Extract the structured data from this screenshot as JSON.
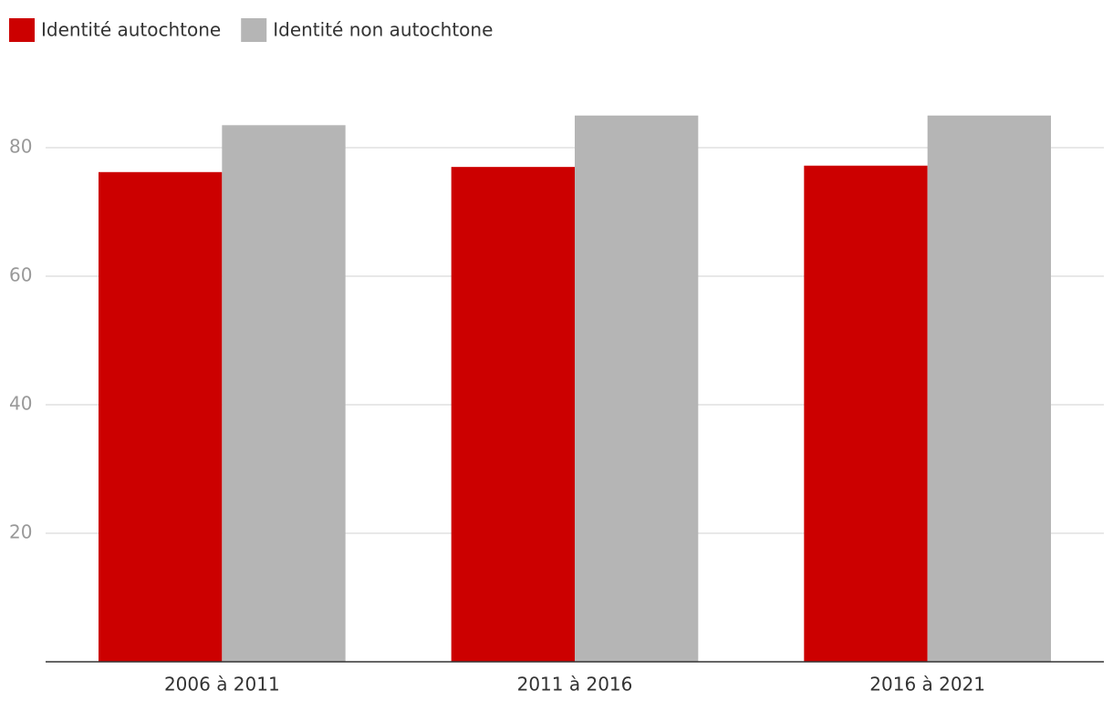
{
  "chart_data": {
    "type": "bar",
    "categories": [
      "2006 à 2011",
      "2011 à 2016",
      "2016 à 2021"
    ],
    "series": [
      {
        "name": "Identité autochtone",
        "color": "#cc0000",
        "values": [
          76.2,
          77.0,
          77.2
        ]
      },
      {
        "name": "Identité non autochtone",
        "color": "#b5b5b5",
        "values": [
          83.5,
          85.0,
          85.0
        ]
      }
    ],
    "ylim": [
      0,
      90
    ],
    "yticks": [
      20,
      40,
      60,
      80
    ],
    "grid": true,
    "legend": "top-left"
  }
}
